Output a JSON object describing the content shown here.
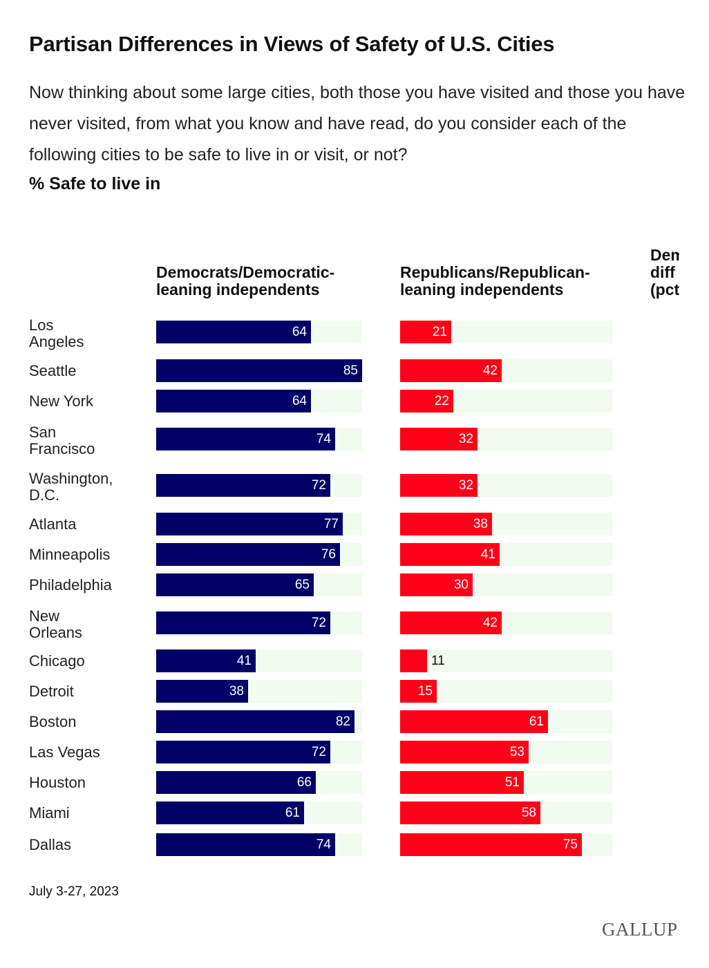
{
  "title": "Partisan Differences in Views of Safety of U.S. Cities",
  "subtitle": "Now thinking about some large cities, both those you have visited and those you have never visited, from what you know and have read, do you consider each of the following cities to be safe to live in or visit, or not?",
  "measure": "% Safe to live in",
  "source": "July 3-27, 2023",
  "logo": "GALLUP",
  "colors": {
    "democrats": "#000066",
    "republicans": "#ff0018",
    "track": "#f1fbef"
  },
  "chart_data": {
    "type": "bar",
    "orientation": "horizontal",
    "title": "Partisan Differences in Views of Safety of U.S. Cities",
    "ylabel": "% Safe to live in",
    "xlim": [
      0,
      85
    ],
    "categories": [
      "Los Angeles",
      "Seattle",
      "New York",
      "San Francisco",
      "Washington, D.C.",
      "Atlanta",
      "Minneapolis",
      "Philadelphia",
      "New Orleans",
      "Chicago",
      "Detroit",
      "Boston",
      "Las Vegas",
      "Houston",
      "Miami",
      "Dallas"
    ],
    "series": [
      {
        "name": "Democrats/Democratic-leaning independents",
        "values": [
          64,
          85,
          64,
          74,
          72,
          77,
          76,
          65,
          72,
          41,
          38,
          82,
          72,
          66,
          61,
          74
        ]
      },
      {
        "name": "Republicans/Republican-leaning independents",
        "values": [
          21,
          42,
          22,
          32,
          32,
          38,
          41,
          30,
          42,
          11,
          15,
          61,
          53,
          51,
          58,
          75
        ]
      }
    ],
    "truncated_column_header": "Dem diff (pc"
  }
}
